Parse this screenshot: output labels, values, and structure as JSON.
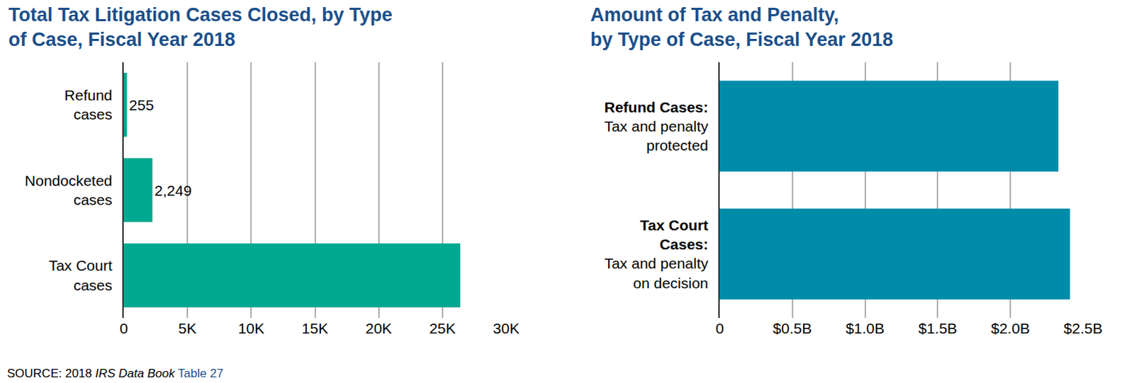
{
  "chart_data": [
    {
      "type": "bar",
      "orientation": "horizontal",
      "title": "Total Tax Litigation Cases Closed, by Type\nof Case, Fiscal Year 2018",
      "categories": [
        "Refund\ncases",
        "Nondocketed\ncases",
        "Tax Court\ncases"
      ],
      "values": [
        255,
        2249,
        26400
      ],
      "data_labels": true,
      "value_labels": [
        "255",
        "2,249",
        null
      ],
      "color": "#00a88f",
      "xlim": [
        0,
        30000
      ],
      "xticks": [
        0,
        {
          "value": 5000,
          "label": "5K"
        },
        {
          "value": 10000,
          "label": "10K"
        },
        {
          "value": 15000,
          "label": "15K"
        },
        {
          "value": 20000,
          "label": "20K"
        },
        {
          "value": 25000,
          "label": "25K"
        },
        {
          "value": 30000,
          "label": "30K"
        }
      ],
      "grid": true
    },
    {
      "type": "bar",
      "orientation": "horizontal",
      "title": "Amount of Tax and Penalty,\nby Type of Case, Fiscal Year 2018",
      "categories": [
        "Refund Cases:\nTax and penalty\nprotected",
        "Tax Court\nCases:\nTax and penalty\non decision"
      ],
      "values": [
        2330000000,
        2410000000
      ],
      "color": "#008ba8",
      "xlim": [
        0,
        2500000000
      ],
      "xticks": [
        0,
        {
          "value": 500000000,
          "label": "$0.5B"
        },
        {
          "value": 1000000000,
          "label": "$1.0B"
        },
        {
          "value": 1500000000,
          "label": "$1.5B"
        },
        {
          "value": 2000000000,
          "label": "$2.0B"
        },
        {
          "value": 2500000000,
          "label": "$2.5B"
        }
      ],
      "grid": true
    }
  ],
  "source": [
    "SOURCE: 2018 ",
    "IRS Data Book",
    " Table 27"
  ]
}
